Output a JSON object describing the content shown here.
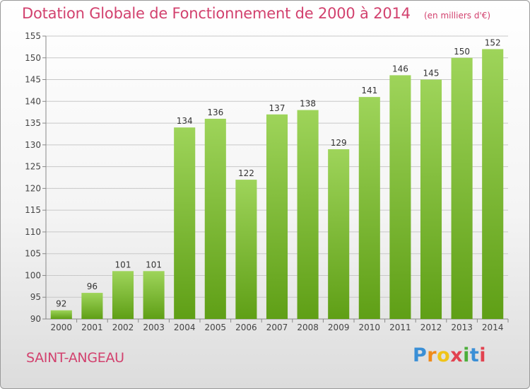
{
  "header": {
    "title": "Dotation Globale de Fonctionnement de 2000 à 2014",
    "subtitle": "(en milliers d'€)"
  },
  "footer": {
    "commune": "SAINT-ANGEAU",
    "logo": "Proxiti",
    "logo_colors": [
      "#3a8fd6",
      "#ef8a1a",
      "#f0c419",
      "#e2424f",
      "#4cae3a",
      "#3a8fd6",
      "#e2424f"
    ]
  },
  "colors": {
    "bar_light": "#9ed45a",
    "bar_dark": "#5f9f16",
    "title": "#d2416e",
    "grid": "#c8c8c8"
  },
  "chart_data": {
    "type": "bar",
    "categories": [
      "2000",
      "2001",
      "2002",
      "2003",
      "2004",
      "2005",
      "2006",
      "2007",
      "2008",
      "2009",
      "2010",
      "2011",
      "2012",
      "2013",
      "2014"
    ],
    "values": [
      92,
      96,
      101,
      101,
      134,
      136,
      122,
      137,
      138,
      129,
      141,
      146,
      145,
      150,
      152
    ],
    "ylim": [
      90,
      155
    ],
    "yticks": [
      90,
      95,
      100,
      105,
      110,
      115,
      120,
      125,
      130,
      135,
      140,
      145,
      150,
      155
    ],
    "grid": true,
    "data_labels": true
  }
}
